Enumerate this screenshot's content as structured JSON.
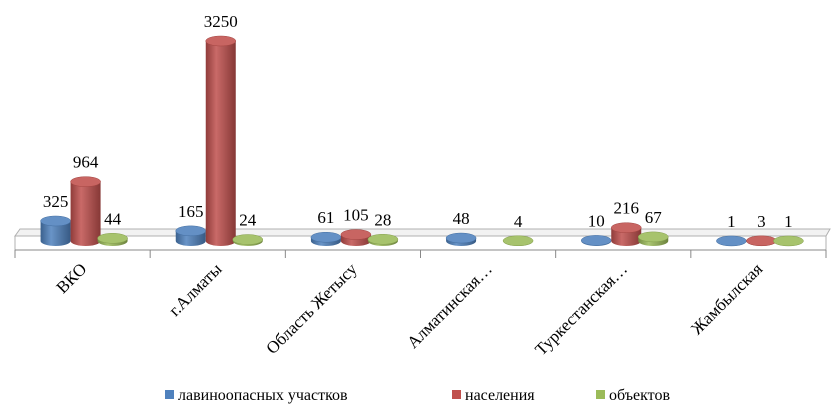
{
  "chart_data": {
    "type": "bar",
    "style": "3d-cylinder",
    "categories": [
      "ВКО",
      "г.Алматы",
      "Область Жетысу",
      "Алматинская…",
      "Туркестанская…",
      "Жамбылская"
    ],
    "series": [
      {
        "name": "лавиноопасных участков",
        "values": [
          325,
          165,
          61,
          48,
          10,
          1
        ],
        "color": "#4f81bd"
      },
      {
        "name": "населения",
        "values": [
          964,
          3250,
          105,
          null,
          216,
          3
        ],
        "color": "#c0504d"
      },
      {
        "name": "объектов",
        "values": [
          44,
          24,
          28,
          4,
          67,
          1
        ],
        "color": "#9bbb59"
      }
    ],
    "title": "",
    "xlabel": "",
    "ylabel": "",
    "legend_position": "bottom",
    "grid": false
  }
}
